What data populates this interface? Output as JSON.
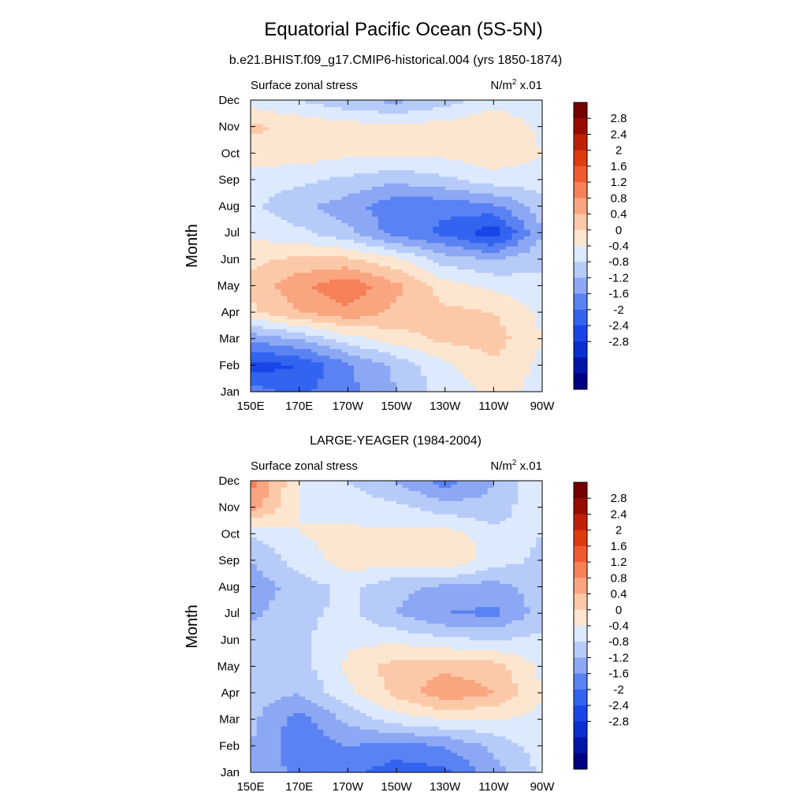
{
  "title": "Equatorial Pacific Ocean (5S-5N)",
  "colors": {
    "levels": [
      "#000080",
      "#0016a8",
      "#0a2ed0",
      "#1a46e8",
      "#3264f0",
      "#5a82f2",
      "#8ca8f4",
      "#b6cbf8",
      "#dde9fc",
      "#fde6d0",
      "#fcc9a8",
      "#f9a680",
      "#f68058",
      "#f05a30",
      "#e03a10",
      "#c02008",
      "#980c00",
      "#740000"
    ]
  },
  "colorbar": {
    "labels": [
      "2.8",
      "2.4",
      "2",
      "1.6",
      "1.2",
      "0.8",
      "0.4",
      "0",
      "-0.4",
      "-0.8",
      "-1.2",
      "-1.6",
      "-2",
      "-2.4",
      "-2.8"
    ]
  },
  "chart_data": [
    {
      "type": "heatmap",
      "subtitle": "b.e21.BHIST.f09_g17.CMIP6-historical.004 (yrs 1850-1874)",
      "left_label": "Surface zonal stress",
      "right_label_main": "N/m",
      "right_label_sup": "2",
      "right_label_suffix": " x.01",
      "ylabel": "Month",
      "x_ticks": [
        "150E",
        "170E",
        "170W",
        "150W",
        "130W",
        "110W",
        "90W"
      ],
      "y_ticks": [
        "Jan",
        "Feb",
        "Mar",
        "Apr",
        "May",
        "Jun",
        "Jul",
        "Aug",
        "Sep",
        "Oct",
        "Nov",
        "Dec"
      ],
      "x_values_deg": [
        150,
        170,
        190,
        210,
        230,
        250,
        270
      ],
      "months": [
        1,
        2,
        3,
        4,
        5,
        6,
        7,
        8,
        9,
        10,
        11,
        12
      ],
      "levels": [
        -2.8,
        -2.4,
        -2,
        -1.6,
        -1.2,
        -0.8,
        -0.4,
        0,
        0.4,
        0.8,
        1.2,
        1.6,
        2,
        2.4,
        2.8
      ],
      "values": [
        [
          -1.0,
          -1.3,
          -0.9,
          -0.4,
          0.2,
          0.5,
          0.3
        ],
        [
          -1.8,
          -1.6,
          -0.9,
          -0.3,
          0.3,
          0.7,
          0.3
        ],
        [
          -0.7,
          -0.4,
          0.2,
          0.6,
          0.9,
          1.0,
          0.4
        ],
        [
          0.7,
          1.2,
          1.5,
          1.1,
          0.9,
          0.8,
          0.3
        ],
        [
          0.9,
          1.5,
          1.9,
          1.3,
          0.6,
          0.3,
          0.1
        ],
        [
          0.7,
          0.9,
          0.9,
          0.5,
          -0.2,
          -0.4,
          -0.1
        ],
        [
          0.3,
          0.1,
          -0.3,
          -1.0,
          -1.3,
          -1.9,
          -0.4
        ],
        [
          0.1,
          -0.3,
          -0.6,
          -1.1,
          -1.1,
          -0.9,
          -0.2
        ],
        [
          0.2,
          0.1,
          -0.1,
          -0.3,
          -0.1,
          0.2,
          0.2
        ],
        [
          0.6,
          0.6,
          0.5,
          0.5,
          0.5,
          0.7,
          0.4
        ],
        [
          0.9,
          0.7,
          0.6,
          0.5,
          0.6,
          0.8,
          0.3
        ],
        [
          0.2,
          0.0,
          -0.3,
          -0.5,
          -0.2,
          0.2,
          0.1
        ]
      ]
    },
    {
      "type": "heatmap",
      "subtitle": "LARGE-YEAGER (1984-2004)",
      "left_label": "Surface zonal stress",
      "right_label_main": "N/m",
      "right_label_sup": "2",
      "right_label_suffix": " x.01",
      "ylabel": "Month",
      "x_ticks": [
        "150E",
        "170E",
        "170W",
        "150W",
        "130W",
        "110W",
        "90W"
      ],
      "y_ticks": [
        "Jan",
        "Feb",
        "Mar",
        "Apr",
        "May",
        "Jun",
        "Jul",
        "Aug",
        "Sep",
        "Oct",
        "Nov",
        "Dec"
      ],
      "x_values_deg": [
        150,
        170,
        190,
        210,
        230,
        250,
        270
      ],
      "months": [
        1,
        2,
        3,
        4,
        5,
        6,
        7,
        8,
        9,
        10,
        11,
        12
      ],
      "levels": [
        -2.8,
        -2.4,
        -2,
        -1.6,
        -1.2,
        -0.8,
        -0.4,
        0,
        0.4,
        0.8,
        1.2,
        1.6,
        2,
        2.4,
        2.8
      ],
      "values": [
        [
          -0.5,
          -0.9,
          -1.1,
          -1.4,
          -1.3,
          -0.6,
          0.1
        ],
        [
          -0.4,
          -1.1,
          -0.8,
          -1.0,
          -0.8,
          -0.3,
          0.2
        ],
        [
          -0.3,
          -1.0,
          -0.3,
          0.2,
          0.4,
          0.4,
          0.3
        ],
        [
          -0.2,
          -0.4,
          0.3,
          0.9,
          1.5,
          1.2,
          0.4
        ],
        [
          -0.3,
          -0.2,
          0.5,
          1.0,
          1.1,
          1.0,
          0.3
        ],
        [
          -0.2,
          -0.1,
          0.3,
          0.3,
          0.1,
          0.0,
          0.1
        ],
        [
          -0.5,
          -0.1,
          0.1,
          -0.4,
          -0.8,
          -0.9,
          -0.2
        ],
        [
          -0.7,
          -0.2,
          0.1,
          -0.3,
          -0.5,
          -0.6,
          -0.2
        ],
        [
          -0.4,
          0.2,
          0.6,
          0.6,
          0.8,
          0.2,
          -0.1
        ],
        [
          0.0,
          0.4,
          0.5,
          0.5,
          0.6,
          0.2,
          0.0
        ],
        [
          1.4,
          0.4,
          0.2,
          0.1,
          -0.2,
          -0.3,
          0.4
        ],
        [
          1.8,
          0.4,
          0.0,
          -0.4,
          -1.0,
          -0.4,
          0.4
        ]
      ]
    }
  ]
}
